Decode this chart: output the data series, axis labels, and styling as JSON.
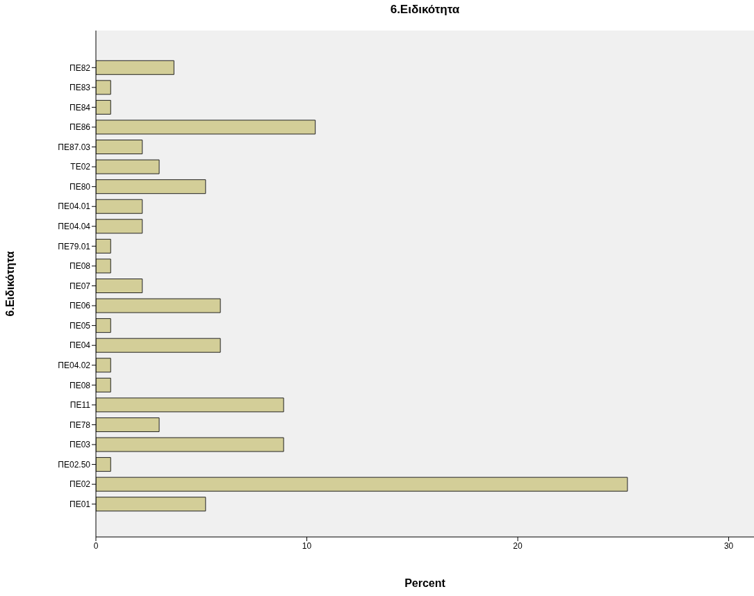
{
  "chart_data": {
    "type": "bar",
    "orientation": "horizontal",
    "title": "6.Ειδικότητα",
    "xlabel": "Percent",
    "ylabel": "6.Ειδικότητα",
    "categories": [
      "ΠΕ82",
      "ΠΕ83",
      "ΠΕ84",
      "ΠΕ86",
      "ΠΕ87.03",
      "ΤΕ02",
      "ΠΕ80",
      "ΠΕ04.01",
      "ΠΕ04.04",
      "ΠΕ79.01",
      "ΠΕ08",
      "ΠΕ07",
      "ΠΕ06",
      "ΠΕ05",
      "ΠΕ04",
      "ΠΕ04.02",
      "ΠΕ08",
      "ΠΕ11",
      "ΠΕ78",
      "ΠΕ03",
      "ΠΕ02.50",
      "ΠΕ02",
      "ΠΕ01"
    ],
    "values": [
      3.7,
      0.7,
      0.7,
      10.4,
      2.2,
      3.0,
      5.2,
      2.2,
      2.2,
      0.7,
      0.7,
      2.2,
      5.9,
      0.7,
      5.9,
      0.7,
      0.7,
      8.9,
      3.0,
      8.9,
      0.7,
      25.2,
      5.2
    ],
    "color": "#d3ce98",
    "xlim": [
      0,
      31.2
    ],
    "xticks": [
      0,
      10,
      20,
      30
    ],
    "grid": false
  }
}
